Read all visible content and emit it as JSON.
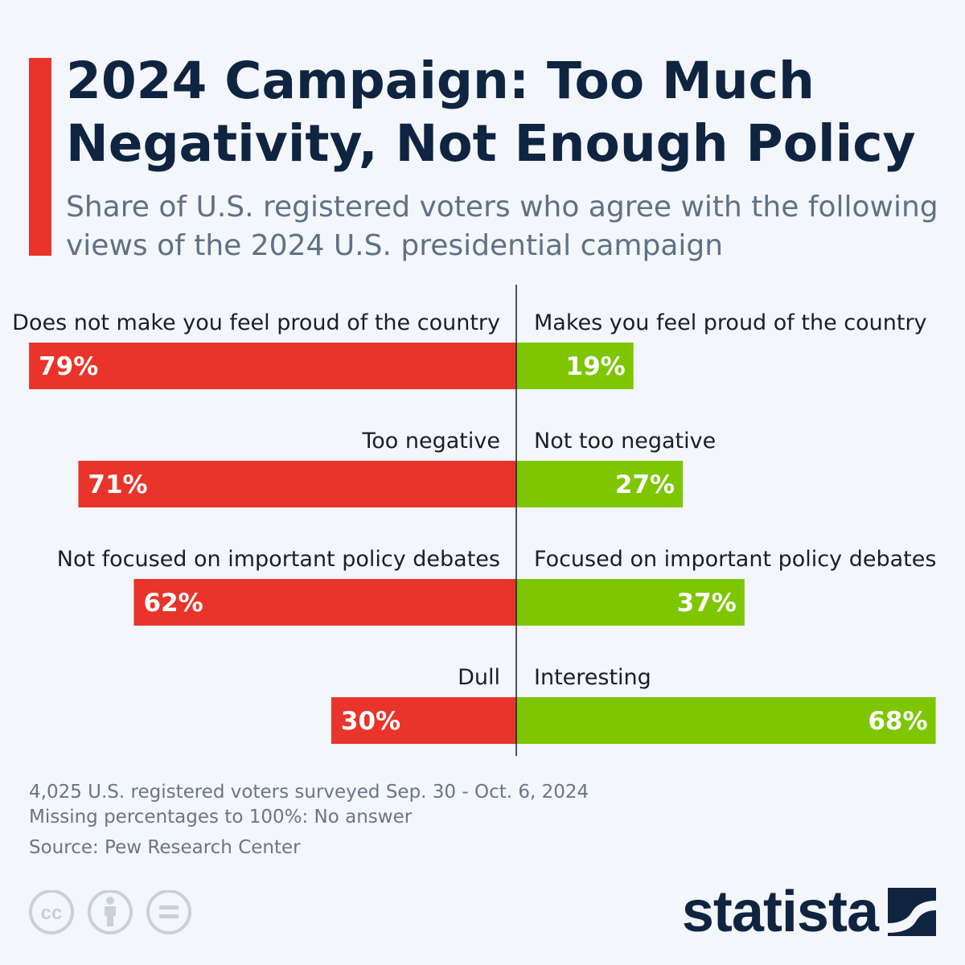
{
  "title": "2024 Campaign: Too Much Negativity, Not Enough Policy",
  "subtitle": "Share of U.S. registered voters who agree with the following views of the 2024 U.S. presidential campaign",
  "chart_data": {
    "type": "bar",
    "orientation": "diverging-horizontal",
    "value_unit": "%",
    "xlim": [
      0,
      100
    ],
    "colors": {
      "left": "#e8342a",
      "right": "#7dc600"
    },
    "rows": [
      {
        "left_label": "Does not make you feel proud of the country",
        "left_value": 79,
        "left_text": "79%",
        "right_label": "Makes you feel proud of the country",
        "right_value": 19,
        "right_text": "19%"
      },
      {
        "left_label": "Too negative",
        "left_value": 71,
        "left_text": "71%",
        "right_label": "Not too negative",
        "right_value": 27,
        "right_text": "27%"
      },
      {
        "left_label": "Not focused on important policy debates",
        "left_value": 62,
        "left_text": "62%",
        "right_label": "Focused on important policy debates",
        "right_value": 37,
        "right_text": "37%"
      },
      {
        "left_label": "Dull",
        "left_value": 30,
        "left_text": "30%",
        "right_label": "Interesting",
        "right_value": 68,
        "right_text": "68%"
      }
    ]
  },
  "notes": {
    "survey": "4,025 U.S. registered voters surveyed Sep. 30 - Oct. 6, 2024",
    "missing": "Missing percentages to 100%: No answer",
    "source": "Source: Pew Research Center"
  },
  "brand": {
    "name": "statista"
  },
  "license_icons": [
    "cc-icon",
    "attribution-icon",
    "no-derivatives-icon"
  ]
}
